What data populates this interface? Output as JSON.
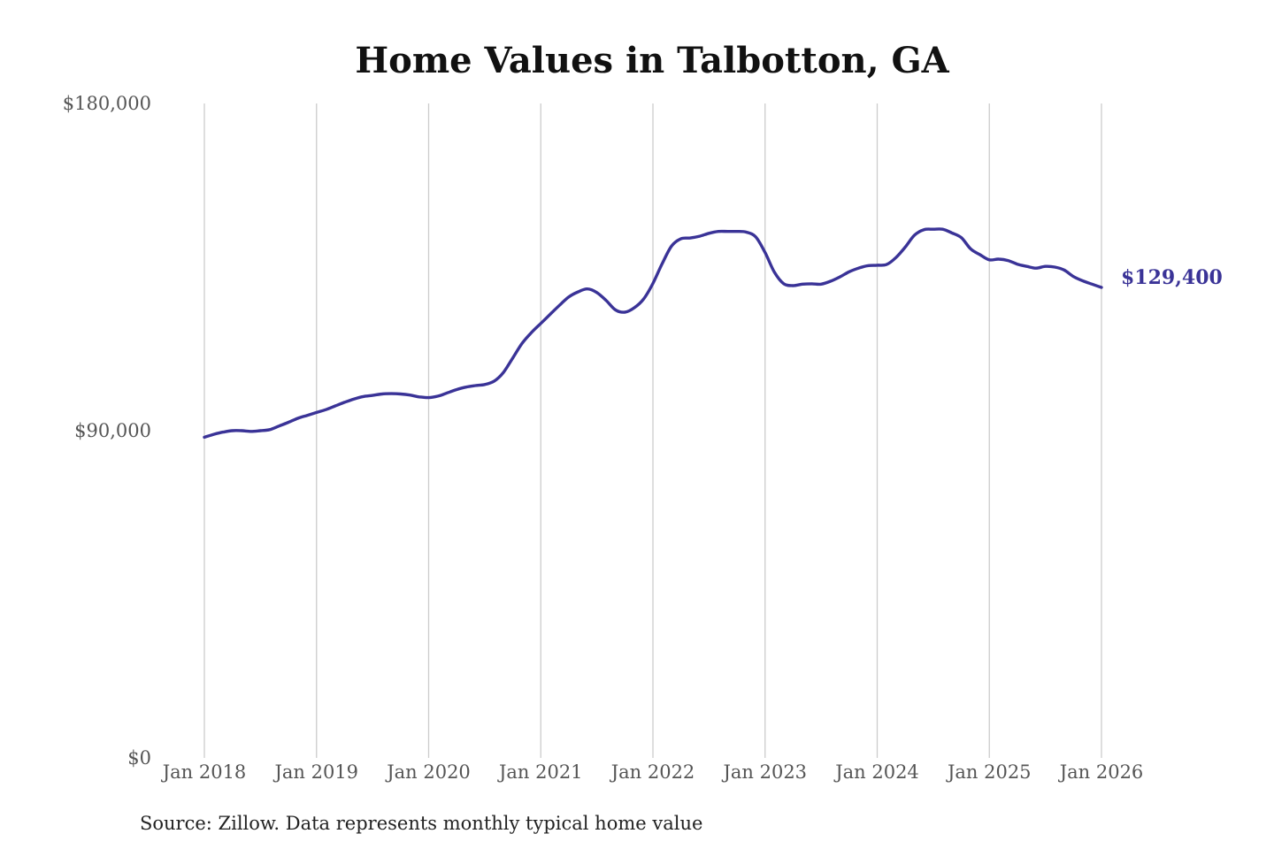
{
  "chart_data": {
    "type": "line",
    "title": "Home Values in Talbotton, GA",
    "xlabel": "",
    "ylabel": "",
    "x_ticks": [
      "Jan 2018",
      "Jan 2019",
      "Jan 2020",
      "Jan 2021",
      "Jan 2022",
      "Jan 2023",
      "Jan 2024",
      "Jan 2025",
      "Jan 2026"
    ],
    "x_range": [
      "2018-01",
      "2026-01"
    ],
    "y_ticks": [
      "$0",
      "$90,000",
      "$180,000"
    ],
    "y_tick_values": [
      0,
      90000,
      180000
    ],
    "ylim": [
      0,
      180000
    ],
    "grid": "vertical lines at x ticks",
    "line_color": "#3a3397",
    "end_label": "$129,400",
    "source": "Source: Zillow. Data represents monthly typical home value",
    "series": [
      {
        "points": [
          [
            "2018-01",
            88200
          ],
          [
            "2018-02",
            89000
          ],
          [
            "2018-03",
            89600
          ],
          [
            "2018-04",
            90000
          ],
          [
            "2018-05",
            90000
          ],
          [
            "2018-06",
            89800
          ],
          [
            "2018-07",
            90000
          ],
          [
            "2018-08",
            90300
          ],
          [
            "2018-09",
            91300
          ],
          [
            "2018-10",
            92300
          ],
          [
            "2018-11",
            93400
          ],
          [
            "2018-12",
            94200
          ],
          [
            "2019-01",
            95000
          ],
          [
            "2019-02",
            95800
          ],
          [
            "2019-03",
            96800
          ],
          [
            "2019-04",
            97800
          ],
          [
            "2019-05",
            98700
          ],
          [
            "2019-06",
            99400
          ],
          [
            "2019-07",
            99700
          ],
          [
            "2019-08",
            100100
          ],
          [
            "2019-09",
            100200
          ],
          [
            "2019-10",
            100100
          ],
          [
            "2019-11",
            99800
          ],
          [
            "2019-12",
            99300
          ],
          [
            "2020-01",
            99100
          ],
          [
            "2020-02",
            99500
          ],
          [
            "2020-03",
            100400
          ],
          [
            "2020-04",
            101300
          ],
          [
            "2020-05",
            102000
          ],
          [
            "2020-06",
            102400
          ],
          [
            "2020-07",
            102700
          ],
          [
            "2020-08",
            103600
          ],
          [
            "2020-09",
            106000
          ],
          [
            "2020-10",
            110000
          ],
          [
            "2020-11",
            114000
          ],
          [
            "2020-12",
            117000
          ],
          [
            "2021-01",
            119500
          ],
          [
            "2021-02",
            122000
          ],
          [
            "2021-03",
            124500
          ],
          [
            "2021-04",
            126800
          ],
          [
            "2021-05",
            128200
          ],
          [
            "2021-06",
            129000
          ],
          [
            "2021-07",
            128000
          ],
          [
            "2021-08",
            125800
          ],
          [
            "2021-09",
            123200
          ],
          [
            "2021-10",
            122600
          ],
          [
            "2021-11",
            123800
          ],
          [
            "2021-12",
            126200
          ],
          [
            "2022-01",
            130500
          ],
          [
            "2022-02",
            136000
          ],
          [
            "2022-03",
            140800
          ],
          [
            "2022-04",
            142800
          ],
          [
            "2022-05",
            143000
          ],
          [
            "2022-06",
            143500
          ],
          [
            "2022-07",
            144300
          ],
          [
            "2022-08",
            144800
          ],
          [
            "2022-09",
            144800
          ],
          [
            "2022-10",
            144800
          ],
          [
            "2022-11",
            144600
          ],
          [
            "2022-12",
            143300
          ],
          [
            "2023-01",
            139000
          ],
          [
            "2023-02",
            133600
          ],
          [
            "2023-03",
            130400
          ],
          [
            "2023-04",
            129900
          ],
          [
            "2023-05",
            130300
          ],
          [
            "2023-06",
            130400
          ],
          [
            "2023-07",
            130300
          ],
          [
            "2023-08",
            131100
          ],
          [
            "2023-09",
            132300
          ],
          [
            "2023-10",
            133700
          ],
          [
            "2023-11",
            134700
          ],
          [
            "2023-12",
            135400
          ],
          [
            "2024-01",
            135500
          ],
          [
            "2024-02",
            135700
          ],
          [
            "2024-03",
            137600
          ],
          [
            "2024-04",
            140500
          ],
          [
            "2024-05",
            143800
          ],
          [
            "2024-06",
            145300
          ],
          [
            "2024-07",
            145400
          ],
          [
            "2024-08",
            145400
          ],
          [
            "2024-09",
            144400
          ],
          [
            "2024-10",
            143100
          ],
          [
            "2024-11",
            140000
          ],
          [
            "2024-12",
            138400
          ],
          [
            "2025-01",
            137000
          ],
          [
            "2025-02",
            137200
          ],
          [
            "2025-03",
            136800
          ],
          [
            "2025-04",
            135800
          ],
          [
            "2025-05",
            135200
          ],
          [
            "2025-06",
            134700
          ],
          [
            "2025-07",
            135200
          ],
          [
            "2025-08",
            135000
          ],
          [
            "2025-09",
            134200
          ],
          [
            "2025-10",
            132400
          ],
          [
            "2025-11",
            131200
          ],
          [
            "2025-12",
            130300
          ],
          [
            "2026-01",
            129400
          ]
        ]
      }
    ]
  }
}
